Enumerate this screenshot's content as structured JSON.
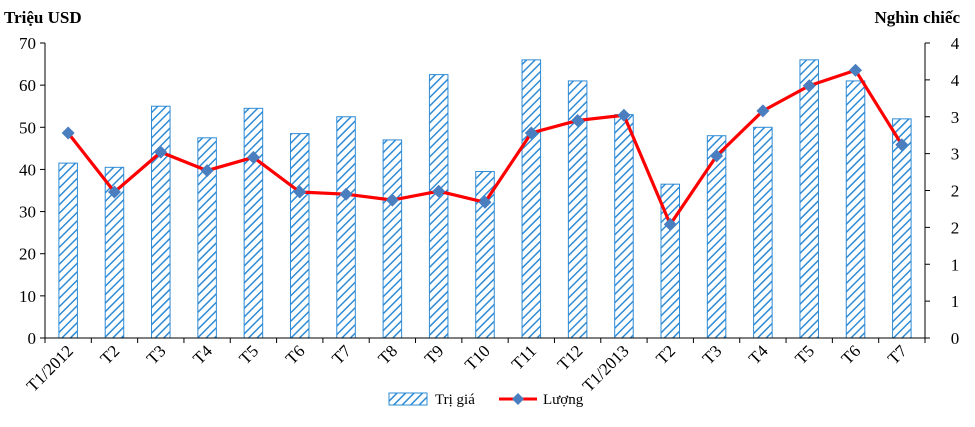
{
  "chart_data": {
    "type": "bar+line",
    "categories": [
      "T1/2012",
      "T2",
      "T3",
      "T4",
      "T5",
      "T6",
      "T7",
      "T8",
      "T9",
      "T10",
      "T11",
      "T12",
      "T1/2013",
      "T2",
      "T3",
      "T4",
      "T5",
      "T6",
      "T7"
    ],
    "series": [
      {
        "name": "Trị giá",
        "type": "bar",
        "axis": "left",
        "values": [
          41.5,
          40.5,
          55,
          47.5,
          54.5,
          48.5,
          52.5,
          47,
          62.5,
          39.5,
          66,
          61,
          53,
          36.5,
          48,
          50,
          66,
          61,
          52
        ]
      },
      {
        "name": "Lượng",
        "type": "line",
        "axis": "right",
        "values": [
          2.78,
          1.98,
          2.52,
          2.27,
          2.45,
          1.98,
          1.95,
          1.87,
          1.99,
          1.84,
          2.78,
          2.95,
          3.02,
          1.54,
          2.47,
          3.08,
          3.42,
          3.63,
          2.62
        ]
      }
    ],
    "y_left": {
      "label": "Triệu USD",
      "lim": [
        0,
        70
      ],
      "ticks": [
        "0",
        "10",
        "20",
        "30",
        "40",
        "50",
        "60",
        "70"
      ]
    },
    "y_right": {
      "label": "Nghìn chiếc",
      "lim": [
        0,
        4
      ],
      "ticks": [
        "0",
        "1",
        "1",
        "2",
        "2",
        "3",
        "3",
        "4",
        "4"
      ]
    },
    "legend_position": "bottom",
    "colors": {
      "bar_stroke": "#2e8bd6",
      "bar_hatch": "#2e8bd6",
      "line": "#ff0000",
      "marker": "#4a7ebf"
    }
  }
}
